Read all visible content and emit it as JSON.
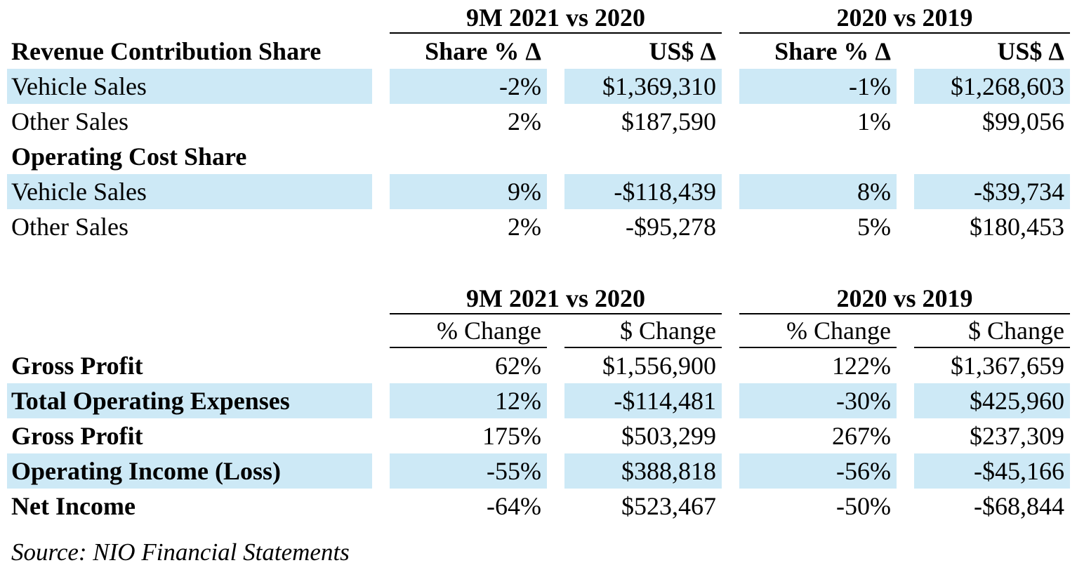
{
  "chart_data": [
    {
      "type": "table",
      "group_headers": [
        "9M 2021 vs 2020",
        "2020 vs 2019"
      ],
      "corner_label": "Revenue Contribution Share",
      "column_headers": [
        "Share % Δ",
        "US$ Δ",
        "Share % Δ",
        "US$ Δ"
      ],
      "rows": [
        {
          "label": "Vehicle Sales",
          "section": false,
          "highlighted": true,
          "values": [
            "-2%",
            "$1,369,310",
            "-1%",
            "$1,268,603"
          ]
        },
        {
          "label": "Other Sales",
          "section": false,
          "highlighted": false,
          "values": [
            "2%",
            "$187,590",
            "1%",
            "$99,056"
          ]
        },
        {
          "label": "Operating Cost Share",
          "section": true,
          "highlighted": false,
          "values": [
            "",
            "",
            "",
            ""
          ]
        },
        {
          "label": "Vehicle Sales",
          "section": false,
          "highlighted": true,
          "values": [
            "9%",
            "-$118,439",
            "8%",
            "-$39,734"
          ]
        },
        {
          "label": "Other Sales",
          "section": false,
          "highlighted": false,
          "values": [
            "2%",
            "-$95,278",
            "5%",
            "$180,453"
          ]
        }
      ]
    },
    {
      "type": "table",
      "group_headers": [
        "9M 2021 vs 2020",
        "2020 vs 2019"
      ],
      "corner_label": "",
      "column_headers": [
        "% Change",
        "$ Change",
        "% Change",
        "$ Change"
      ],
      "rows": [
        {
          "label": "Gross Profit",
          "highlighted": false,
          "values": [
            "62%",
            "$1,556,900",
            "122%",
            "$1,367,659"
          ]
        },
        {
          "label": "Total Operating Expenses",
          "highlighted": true,
          "values": [
            "12%",
            "-$114,481",
            "-30%",
            "$425,960"
          ]
        },
        {
          "label": "Gross Profit",
          "highlighted": false,
          "values": [
            "175%",
            "$503,299",
            "267%",
            "$237,309"
          ]
        },
        {
          "label": "Operating Income (Loss)",
          "highlighted": true,
          "values": [
            "-55%",
            "$388,818",
            "-56%",
            "-$45,166"
          ]
        },
        {
          "label": "Net Income",
          "highlighted": false,
          "values": [
            "-64%",
            "$523,467",
            "-50%",
            "-$68,844"
          ]
        }
      ]
    }
  ],
  "source_note": "Source: NIO Financial Statements",
  "colors": {
    "row_highlight": "#cde9f6",
    "text": "#000000",
    "background": "#ffffff"
  }
}
